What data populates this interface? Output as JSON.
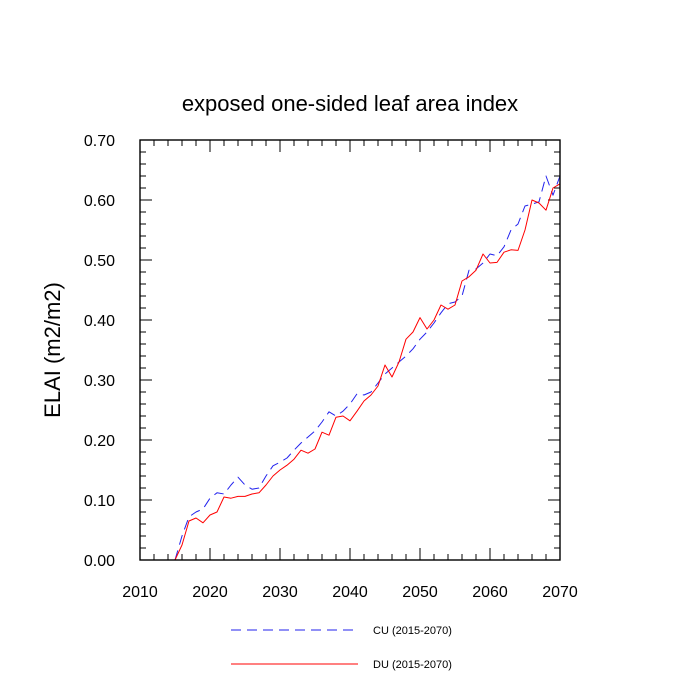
{
  "chart_data": {
    "type": "line",
    "title": "exposed one-sided leaf area index",
    "xlabel": "",
    "ylabel": "ELAI  (m2/m2)",
    "xlim": [
      2010,
      2070
    ],
    "ylim": [
      0.0,
      0.7
    ],
    "xticks": [
      2010,
      2020,
      2030,
      2040,
      2050,
      2060,
      2070
    ],
    "xtick_labels": [
      "2010",
      "2020",
      "2030",
      "2040",
      "2050",
      "2060",
      "2070"
    ],
    "yticks": [
      0.0,
      0.1,
      0.2,
      0.3,
      0.4,
      0.5,
      0.6,
      0.7
    ],
    "ytick_labels": [
      "0.00",
      "0.10",
      "0.20",
      "0.30",
      "0.40",
      "0.50",
      "0.60",
      "0.70"
    ],
    "grid": false,
    "legend_position": "bottom-center",
    "x": [
      2015,
      2016,
      2017,
      2018,
      2019,
      2020,
      2021,
      2022,
      2023,
      2024,
      2025,
      2026,
      2027,
      2028,
      2029,
      2030,
      2031,
      2032,
      2033,
      2034,
      2035,
      2036,
      2037,
      2038,
      2039,
      2040,
      2041,
      2042,
      2043,
      2044,
      2045,
      2046,
      2047,
      2048,
      2049,
      2050,
      2051,
      2052,
      2053,
      2054,
      2055,
      2056,
      2057,
      2058,
      2059,
      2060,
      2061,
      2062,
      2063,
      2064,
      2065,
      2066,
      2067,
      2068,
      2069,
      2070
    ],
    "series": [
      {
        "name": "CU (2015-2070)",
        "color": "#2222ee",
        "dash": "dashed",
        "values": [
          0.0,
          0.04,
          0.072,
          0.08,
          0.085,
          0.103,
          0.112,
          0.11,
          0.125,
          0.138,
          0.125,
          0.118,
          0.12,
          0.14,
          0.157,
          0.163,
          0.17,
          0.183,
          0.195,
          0.205,
          0.215,
          0.23,
          0.247,
          0.24,
          0.248,
          0.26,
          0.277,
          0.275,
          0.28,
          0.295,
          0.31,
          0.32,
          0.33,
          0.34,
          0.352,
          0.368,
          0.38,
          0.395,
          0.412,
          0.427,
          0.43,
          0.44,
          0.483,
          0.485,
          0.495,
          0.51,
          0.507,
          0.522,
          0.55,
          0.56,
          0.59,
          0.593,
          0.597,
          0.64,
          0.608,
          0.64
        ]
      },
      {
        "name": "DU (2015-2070)",
        "color": "#ff0000",
        "dash": "solid",
        "values": [
          0.0,
          0.025,
          0.065,
          0.07,
          0.062,
          0.075,
          0.08,
          0.105,
          0.103,
          0.106,
          0.106,
          0.11,
          0.112,
          0.125,
          0.14,
          0.15,
          0.158,
          0.168,
          0.183,
          0.178,
          0.185,
          0.213,
          0.208,
          0.238,
          0.24,
          0.232,
          0.248,
          0.265,
          0.275,
          0.29,
          0.325,
          0.305,
          0.33,
          0.368,
          0.38,
          0.404,
          0.385,
          0.4,
          0.425,
          0.418,
          0.425,
          0.465,
          0.472,
          0.483,
          0.51,
          0.495,
          0.496,
          0.513,
          0.517,
          0.516,
          0.55,
          0.6,
          0.595,
          0.583,
          0.62,
          0.627
        ]
      }
    ]
  }
}
